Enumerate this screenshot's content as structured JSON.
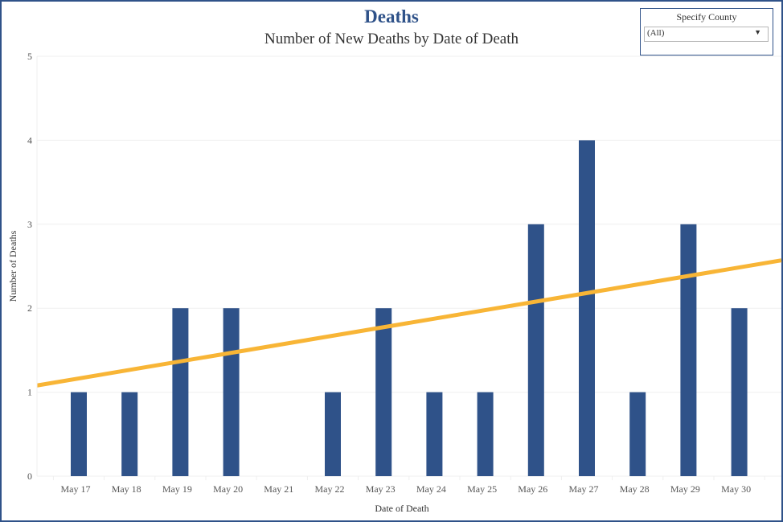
{
  "header": {
    "title": "Deaths",
    "subtitle": "Number of New Deaths by Date of Death"
  },
  "filter": {
    "label": "Specify County",
    "selected": "(All)",
    "icon": "dropdown-arrow-icon"
  },
  "colors": {
    "bar": "#2f5289",
    "trend": "#f8b536",
    "border": "#2f5289",
    "grid": "#efefef"
  },
  "chart_data": {
    "type": "bar",
    "title": "Deaths",
    "subtitle": "Number of New Deaths by Date of Death",
    "xlabel": "Date of Death",
    "ylabel": "Number of Deaths",
    "categories": [
      "May 17",
      "May 18",
      "May 19",
      "May 20",
      "May 21",
      "May 22",
      "May 23",
      "May 24",
      "May 25",
      "May 26",
      "May 27",
      "May 28",
      "May 29",
      "May 30"
    ],
    "values": [
      1,
      1,
      2,
      2,
      0,
      1,
      2,
      1,
      1,
      3,
      4,
      1,
      3,
      2
    ],
    "ylim": [
      0,
      5
    ],
    "yticks": [
      0,
      1,
      2,
      3,
      4,
      5
    ],
    "grid": true,
    "legend": "none",
    "trend_line": {
      "type": "linear",
      "start_value": 1.08,
      "end_value": 2.57
    }
  }
}
